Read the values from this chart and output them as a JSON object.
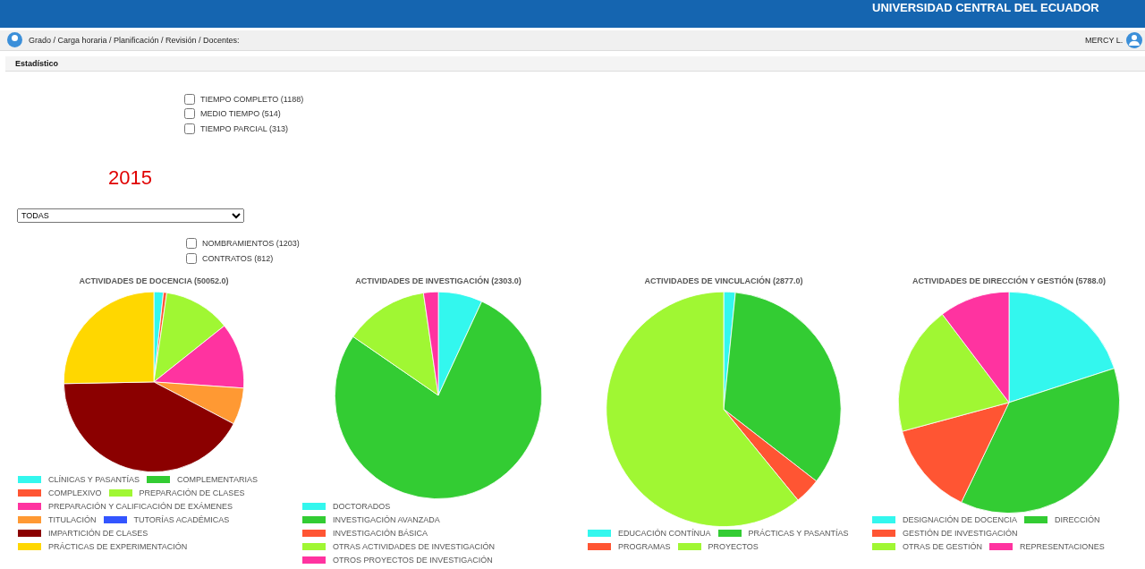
{
  "chart_data": [
    {
      "type": "other",
      "annotations": [
        "UNIVERSIDAD CENTRAL DEL ECUADOR",
        "Grado / Carga horaria / Planificación / Revisión / Docentes:",
        "MERCY L.",
        "Estadístico",
        "TIEMPO COMPLETO (1188)",
        "MEDIO TIEMPO (514)",
        "TIEMPO PARCIAL (313)",
        "2015",
        "TODAS",
        "NOMBRAMIENTOS (1203)",
        "CONTRATOS (812)"
      ]
    },
    {
      "type": "pie",
      "title": "ACTIVIDADES DE DOCENCIA (50052.0)",
      "legend": "bottom",
      "categories": [
        "CLÍNICAS Y PASANTÍAS",
        "COMPLEMENTARIAS",
        "COMPLEXIVO",
        "PREPARACIÓN DE CLASES",
        "PREPARACIÓN Y CALIFICACIÓN DE EXÁMENES",
        "TITULACIÓN",
        "TUTORÍAS ACADÉMICAS",
        "IMPARTICIÓN DE CLASES",
        "PRÁCTICAS DE EXPERIMENTACIÓN"
      ],
      "values": [
        1.7,
        0,
        0.6,
        12,
        11.8,
        6.6,
        0,
        42,
        25.3
      ],
      "colors": [
        "#33f7ee",
        "#33cc33",
        "#ff5533",
        "#a0f733",
        "#ff33a0",
        "#ff9933",
        "#3355ff",
        "#8b0000",
        "#ffd700"
      ]
    },
    {
      "type": "pie",
      "title": "ACTIVIDADES DE INVESTIGACIÓN (2303.0)",
      "legend": "bottom",
      "categories": [
        "DOCTORADOS",
        "INVESTIGACIÓN AVANZADA",
        "INVESTIGACIÓN BÁSICA",
        "OTRAS ACTIVIDADES DE INVESTIGACIÓN",
        "OTROS PROYECTOS DE INVESTIGACIÓN"
      ],
      "values": [
        6.9,
        77.7,
        0,
        13.1,
        2.3
      ],
      "colors": [
        "#33f7ee",
        "#33cc33",
        "#ff5533",
        "#a0f733",
        "#ff33a0"
      ]
    },
    {
      "type": "pie",
      "title": "ACTIVIDADES DE VINCULACIÓN (2877.0)",
      "legend": "bottom",
      "categories": [
        "EDUCACIÓN CONTÍNUA",
        "PRÁCTICAS Y PASANTÍAS",
        "PROGRAMAS",
        "PROYECTOS"
      ],
      "values": [
        1.6,
        33.9,
        3.6,
        60.9
      ],
      "colors": [
        "#33f7ee",
        "#33cc33",
        "#ff5533",
        "#a0f733"
      ]
    },
    {
      "type": "pie",
      "title": "ACTIVIDADES DE DIRECCIÓN Y GESTIÓN (5788.0)",
      "legend": "bottom",
      "categories": [
        "DESIGNACIÓN DE DOCENCIA",
        "DIRECCIÓN",
        "GESTIÓN DE INVESTIGACIÓN",
        "OTRAS DE GESTIÓN",
        "REPRESENTACIONES"
      ],
      "values": [
        20,
        37.1,
        13.7,
        18.9,
        10.3
      ],
      "colors": [
        "#33f7ee",
        "#33cc33",
        "#ff5533",
        "#a0f733",
        "#ff33a0"
      ]
    }
  ]
}
